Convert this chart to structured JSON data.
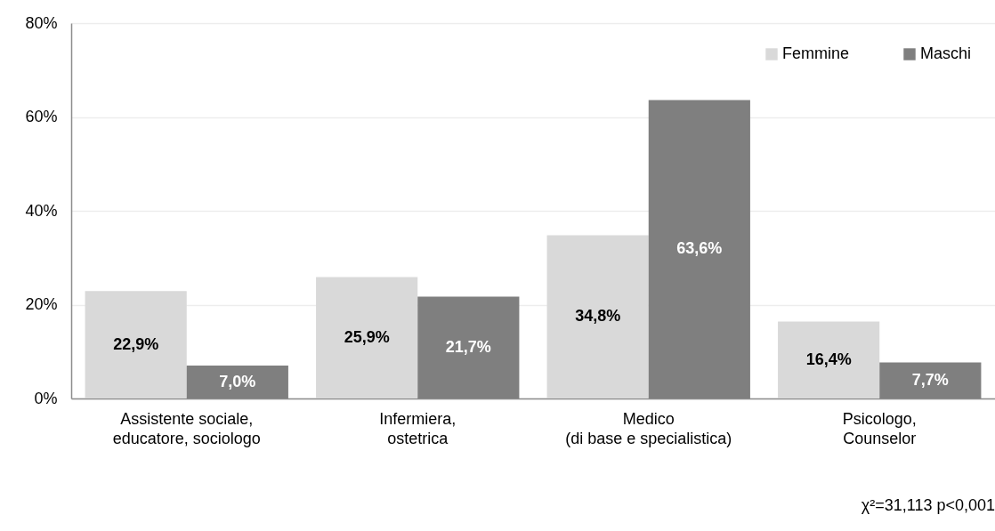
{
  "chart_data": {
    "type": "bar",
    "categories": [
      "Assistente sociale,\neducatore, sociologo",
      "Infermiera,\nostetrica",
      "Medico\n(di base e specialistica)",
      "Psicologo,\nCounselor"
    ],
    "series": [
      {
        "name": "Femmine",
        "color": "#d9d9d9",
        "values": [
          22.9,
          25.9,
          34.8,
          16.4
        ],
        "value_labels": [
          "22,9%",
          "25,9%",
          "34,8%",
          "16,4%"
        ]
      },
      {
        "name": "Maschi",
        "color": "#7f7f7f",
        "values": [
          7.0,
          21.7,
          63.6,
          7.7
        ],
        "value_labels": [
          "7,0%",
          "21,7%",
          "63,6%",
          "7,7%"
        ]
      }
    ],
    "ylim": [
      0,
      80
    ],
    "yticks": [
      {
        "value": 0,
        "label": "0%"
      },
      {
        "value": 20,
        "label": "20%"
      },
      {
        "value": 40,
        "label": "40%"
      },
      {
        "value": 60,
        "label": "60%"
      },
      {
        "value": 80,
        "label": "80%"
      }
    ],
    "grid": "y",
    "legend": "top right",
    "annotations": [
      "χ²=31,113 p<0,001"
    ]
  }
}
